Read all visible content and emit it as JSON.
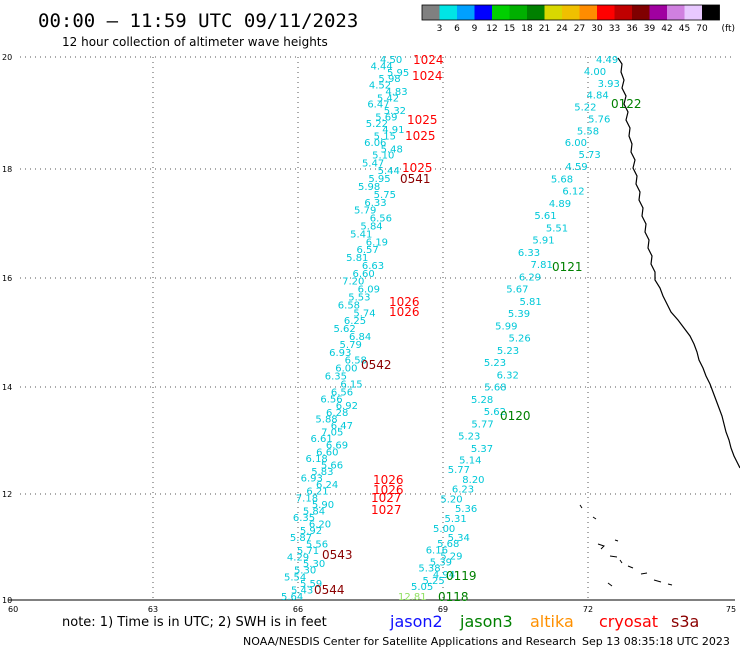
{
  "header": {
    "title": "00:00 – 11:59 UTC 09/11/2023",
    "subtitle": "12 hour collection of altimeter wave heights"
  },
  "colorbar": {
    "labels": [
      "3",
      "6",
      "9",
      "12",
      "15",
      "18",
      "21",
      "24",
      "27",
      "30",
      "33",
      "36",
      "39",
      "42",
      "45",
      "70"
    ],
    "unit": "(ft)",
    "colors": [
      "#808080",
      "#00e5e5",
      "#00a0ff",
      "#0000ff",
      "#00d000",
      "#00b000",
      "#008000",
      "#d8d800",
      "#f0c000",
      "#ff8c00",
      "#ff0000",
      "#c00000",
      "#800000",
      "#a000a0",
      "#d080e0",
      "#e8c8ff",
      "#000000"
    ]
  },
  "axes": {
    "x_ticks": [
      "60",
      "63",
      "66",
      "69",
      "72",
      "75"
    ],
    "y_ticks": [
      "20",
      "18",
      "16",
      "14",
      "12",
      "10"
    ]
  },
  "tracks": [
    {
      "id": "track-a-jason3",
      "color": "#00c8d8",
      "labels": [
        "4.50",
        "4.44",
        "5.95",
        "5.98",
        "4.52",
        "4.83",
        "5.42",
        "6.47",
        "5.32",
        "5.69",
        "5.22",
        "4.91",
        "5.15",
        "6.06",
        "5.48",
        "5.10",
        "5.47",
        "5.44",
        "5.95",
        "5.98",
        "5.75",
        "6.33",
        "5.79",
        "6.56",
        "5.84",
        "5.41",
        "6.19",
        "6.57",
        "5.81",
        "6.63",
        "6.60",
        "7.20",
        "6.09",
        "5.53",
        "6.58",
        "5.74",
        "6.25",
        "5.62",
        "6.84",
        "5.79",
        "6.93",
        "6.58",
        "6.00",
        "6.35",
        "6.15",
        "6.56",
        "6.56",
        "6.92",
        "6.28",
        "5.88",
        "6.47",
        "7.05",
        "6.61",
        "6.69",
        "6.60",
        "6.18",
        "5.66",
        "5.83",
        "6.93",
        "6.24",
        "6.21",
        "7.18",
        "5.90",
        "5.84",
        "6.35",
        "6.20",
        "5.92",
        "5.87",
        "5.56",
        "5.71",
        "4.29",
        "5.30",
        "5.30",
        "5.54",
        "5.59",
        "5.43",
        "5.64"
      ]
    },
    {
      "id": "track-b-jason3",
      "color": "#00c8d8",
      "labels": [
        "4.49",
        "4.00",
        "3.93",
        "4.84",
        "5.22",
        "5.76",
        "5.58",
        "6.00",
        "5.73",
        "4.59",
        "5.68",
        "6.12",
        "4.89",
        "5.61",
        "5.51",
        "5.91",
        "6.33",
        "7.81",
        "6.29",
        "5.67",
        "5.81",
        "5.39",
        "5.99",
        "5.26",
        "5.23",
        "5.23",
        "6.32",
        "5.68",
        "5.28",
        "5.62",
        "5.77",
        "5.23",
        "5.37",
        "5.14",
        "5.77",
        "8.20",
        "6.23",
        "5.20",
        "5.36",
        "5.31",
        "5.00",
        "5.34",
        "5.68",
        "6.16",
        "5.29",
        "5.39",
        "5.38",
        "4.94",
        "5.25",
        "5.05"
      ]
    },
    {
      "id": "track-b-jason2",
      "color": "#90e060",
      "labels": [
        "12.81"
      ]
    }
  ],
  "time_labels": {
    "jason3": [
      "0122",
      "0121",
      "0120",
      "0119",
      "0118"
    ],
    "cryosat": [
      "1024",
      "1024",
      "1025",
      "1025",
      "1025",
      "1026",
      "1026",
      "1026",
      "1026",
      "1027",
      "1027"
    ],
    "s3a": [
      "0541",
      "0542",
      "0543",
      "0544"
    ]
  },
  "footer": {
    "note": "note: 1) Time is in UTC; 2) SWH is in feet",
    "legend": [
      {
        "label": "jason2",
        "color": "#1010ff"
      },
      {
        "label": "jason3",
        "color": "#008000"
      },
      {
        "label": "altika",
        "color": "#ff9000"
      },
      {
        "label": "cryosat",
        "color": "#ff0000"
      },
      {
        "label": "s3a",
        "color": "#8b0000"
      }
    ],
    "credit": "NOAA/NESDIS Center for Satellite Applications and Research",
    "timestamp": "Sep 13 08:35:18 UTC 2023"
  }
}
